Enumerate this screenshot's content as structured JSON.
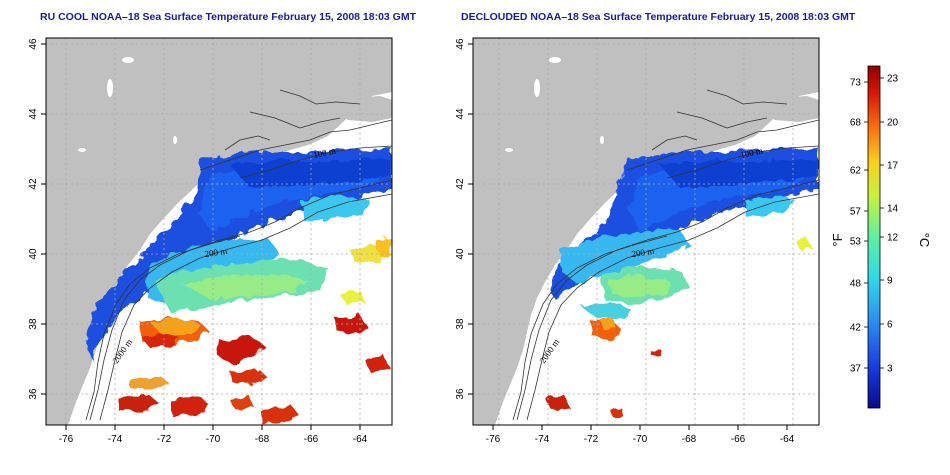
{
  "panels": [
    {
      "title": "RU COOL NOAA–18 Sea Surface Temperature February 15, 2008 18:03 GMT",
      "x_ticks": [
        "-76",
        "-74",
        "-72",
        "-70",
        "-68",
        "-66",
        "-64"
      ],
      "y_ticks": [
        "36",
        "38",
        "40",
        "42",
        "44",
        "46"
      ],
      "isobaths": [
        "100 m",
        "200 m",
        "2000 m"
      ]
    },
    {
      "title": "DECLOUDED NOAA–18 Sea Surface Temperature February 15, 2008 18:03 GMT",
      "x_ticks": [
        "-76",
        "-74",
        "-72",
        "-70",
        "-68",
        "-66",
        "-64"
      ],
      "y_ticks": [
        "36",
        "38",
        "40",
        "42",
        "44",
        "46"
      ],
      "isobaths": [
        "100 m",
        "200 m",
        "2000 m"
      ]
    }
  ],
  "colorbar": {
    "fahrenheit_label": "°F",
    "celsius_label": "°C",
    "fahrenheit_ticks": [
      "73",
      "68",
      "62",
      "57",
      "53",
      "48",
      "42",
      "37"
    ],
    "celsius_ticks": [
      "23",
      "20",
      "17",
      "14",
      "12",
      "9",
      "6",
      "3"
    ],
    "colors": [
      "#0a0a8c",
      "#1a3ce0",
      "#2c8cf0",
      "#30d8e8",
      "#60f0a0",
      "#c8f040",
      "#f8d020",
      "#f87010",
      "#d81808",
      "#900000"
    ]
  },
  "colors": {
    "land": "#c0c0c0",
    "ocean": "#ffffff",
    "title": "#1a1aa0"
  },
  "chart_data": {
    "type": "heatmap",
    "xlim": [
      -77,
      -63
    ],
    "ylim": [
      35,
      46
    ],
    "color_range_celsius": [
      0,
      24
    ],
    "color_range_fahrenheit": [
      32,
      75
    ]
  }
}
